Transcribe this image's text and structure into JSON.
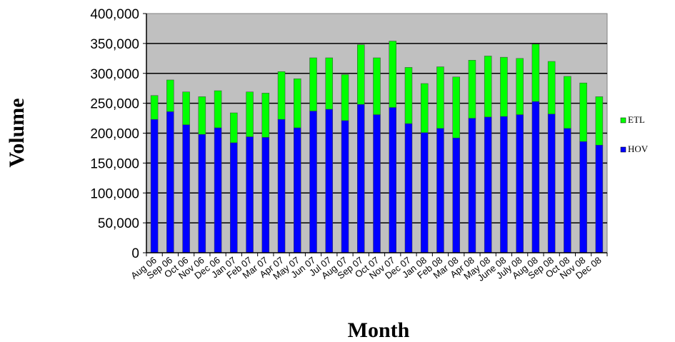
{
  "chart_data": {
    "type": "bar",
    "stacked": true,
    "title": "",
    "xlabel": "Month",
    "ylabel": "Volume",
    "ylim": [
      0,
      400000
    ],
    "yticks": [
      "0",
      "50,000",
      "100,000",
      "150,000",
      "200,000",
      "250,000",
      "300,000",
      "350,000",
      "400,000"
    ],
    "grid": true,
    "legend_position": "right",
    "categories": [
      "Aug 06",
      "Sep 06",
      "Oct 06",
      "Nov 06",
      "Dec 06",
      "Jan 07",
      "Feb 07",
      "Mar 07",
      "Apr 07",
      "May 07",
      "Jun 07",
      "Jul 07",
      "Aug 07",
      "Sep 07",
      "Oct 07",
      "Nov 07",
      "Dec 07",
      "Jan 08",
      "Feb 08",
      "Mar 08",
      "Apr 08",
      "May 08",
      "June 08",
      "July 08",
      "Aug 08",
      "Sep 08",
      "Oct 08",
      "Nov 08",
      "Dec 08"
    ],
    "series": [
      {
        "name": "HOV",
        "color": "#0000ff",
        "values": [
          223000,
          236000,
          214000,
          198000,
          209000,
          184000,
          194000,
          193000,
          223000,
          209000,
          237000,
          240000,
          221000,
          248000,
          231000,
          243000,
          216000,
          201000,
          208000,
          192000,
          225000,
          227000,
          228000,
          231000,
          253000,
          232000,
          208000,
          186000,
          180000
        ]
      },
      {
        "name": "ETL",
        "color": "#00ff00",
        "values": [
          40000,
          53000,
          55000,
          63000,
          62000,
          50000,
          75000,
          74000,
          80000,
          82000,
          89000,
          86000,
          77000,
          100000,
          95000,
          111000,
          94000,
          82000,
          103000,
          102000,
          97000,
          102000,
          99000,
          94000,
          96000,
          88000,
          87000,
          98000,
          81000
        ]
      }
    ]
  },
  "legend": {
    "items": [
      {
        "label": "ETL",
        "color": "#00ff00"
      },
      {
        "label": "HOV",
        "color": "#0000ff"
      }
    ]
  }
}
